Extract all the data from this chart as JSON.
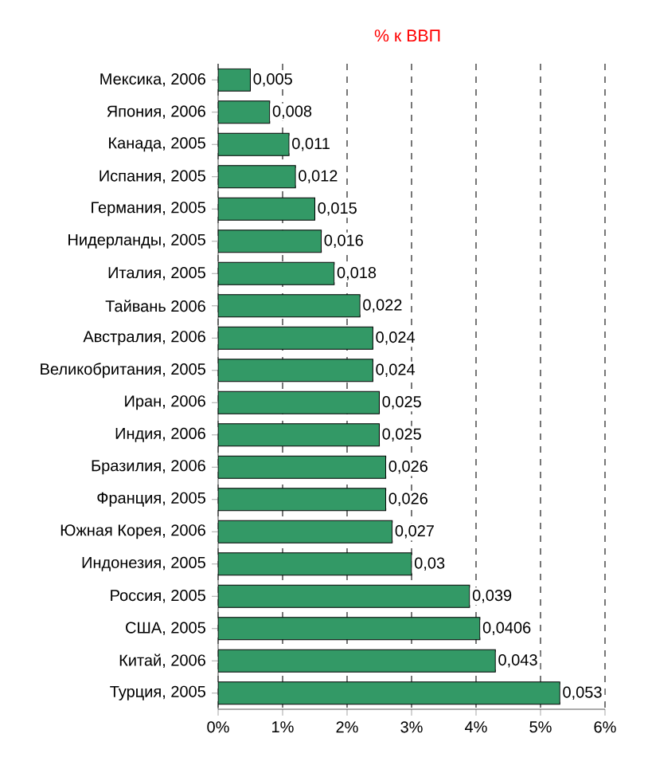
{
  "chart_data": {
    "type": "bar",
    "orientation": "horizontal",
    "title": "% к ВВП",
    "categories": [
      "Мексика, 2006",
      "Япония, 2006",
      "Канада, 2005",
      "Испания, 2005",
      "Германия, 2005",
      "Нидерланды, 2005",
      "Италия, 2005",
      "Тайвань 2006",
      "Австралия, 2006",
      "Великобритания, 2005",
      "Иран, 2006",
      "Индия, 2006",
      "Бразилия, 2006",
      "Франция, 2005",
      "Южная Корея, 2006",
      "Индонезия, 2005",
      "Россия, 2005",
      "США, 2005",
      "Китай, 2006",
      "Турция, 2005"
    ],
    "values": [
      0.005,
      0.008,
      0.011,
      0.012,
      0.015,
      0.016,
      0.018,
      0.022,
      0.024,
      0.024,
      0.025,
      0.025,
      0.026,
      0.026,
      0.027,
      0.03,
      0.039,
      0.0406,
      0.043,
      0.053
    ],
    "value_labels": [
      "0,005",
      "0,008",
      "0,011",
      "0,012",
      "0,015",
      "0,016",
      "0,018",
      "0,022",
      "0,024",
      "0,024",
      "0,025",
      "0,025",
      "0,026",
      "0,026",
      "0,027",
      "0,03",
      "0,039",
      "0,0406",
      "0,043",
      "0,053"
    ],
    "color": "#339966",
    "xlim": [
      0,
      0.06
    ],
    "xticks": [
      {
        "value": 0,
        "label": "0%"
      },
      {
        "value": 0.01,
        "label": "1%"
      },
      {
        "value": 0.02,
        "label": "2%"
      },
      {
        "value": 0.03,
        "label": "3%"
      },
      {
        "value": 0.04,
        "label": "4%"
      },
      {
        "value": 0.05,
        "label": "5%"
      },
      {
        "value": 0.06,
        "label": "6%"
      }
    ],
    "grid": "x"
  }
}
